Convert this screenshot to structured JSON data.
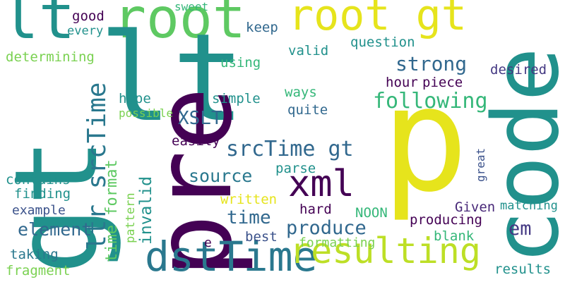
{
  "colors": {
    "background": "#ffffff",
    "teal": "#21918c",
    "dark_teal": "#2a788e",
    "blue": "#31688e",
    "slate": "#3b528b",
    "indigo": "#443983",
    "purple": "#440154",
    "dark_purple": "#482878",
    "green": "#5ec962",
    "sea_green": "#35b779",
    "lime": "#7ad151",
    "yellow_green": "#bddf26",
    "yellow": "#e6e41c"
  },
  "words": [
    {
      "text": "lt",
      "color": "teal"
    },
    {
      "text": "root",
      "color": "green"
    },
    {
      "text": "root gt",
      "color": "yellow"
    },
    {
      "text": "gt",
      "color": "teal"
    },
    {
      "text": "lt",
      "color": "teal"
    },
    {
      "text": "pre",
      "color": "purple"
    },
    {
      "text": "p",
      "color": "yellow"
    },
    {
      "text": "code",
      "color": "teal"
    },
    {
      "text": "ltr srcTime",
      "color": "dark_teal"
    },
    {
      "text": "dstTime",
      "color": "dark_teal"
    },
    {
      "text": "resulting",
      "color": "yellow_green"
    },
    {
      "text": "xml",
      "color": "purple"
    },
    {
      "text": "srcTime gt",
      "color": "blue"
    },
    {
      "text": "XSLT",
      "color": "blue"
    },
    {
      "text": "following",
      "color": "sea_green"
    },
    {
      "text": "strong",
      "color": "blue"
    },
    {
      "text": "time format",
      "color": "green"
    },
    {
      "text": "invalid",
      "color": "teal"
    },
    {
      "text": "source",
      "color": "dark_teal"
    },
    {
      "text": "element",
      "color": "blue"
    },
    {
      "text": "produce",
      "color": "blue"
    },
    {
      "text": "time",
      "color": "blue"
    },
    {
      "text": "em",
      "color": "indigo"
    },
    {
      "text": "good",
      "color": "purple"
    },
    {
      "text": "every",
      "color": "teal"
    },
    {
      "text": "sweet",
      "color": "sea_green"
    },
    {
      "text": "keep",
      "color": "blue"
    },
    {
      "text": "question",
      "color": "teal"
    },
    {
      "text": "determining",
      "color": "lime"
    },
    {
      "text": "valid",
      "color": "teal"
    },
    {
      "text": "using",
      "color": "sea_green"
    },
    {
      "text": "desired",
      "color": "indigo"
    },
    {
      "text": "hour",
      "color": "purple"
    },
    {
      "text": "piece",
      "color": "purple"
    },
    {
      "text": "hope",
      "color": "teal"
    },
    {
      "text": "ways",
      "color": "sea_green"
    },
    {
      "text": "simple",
      "color": "teal"
    },
    {
      "text": "possible",
      "color": "lime"
    },
    {
      "text": "quite",
      "color": "blue"
    },
    {
      "text": "easily",
      "color": "purple"
    },
    {
      "text": "pattern",
      "color": "lime"
    },
    {
      "text": "parse",
      "color": "teal"
    },
    {
      "text": "great",
      "color": "slate"
    },
    {
      "text": "contains",
      "color": "teal"
    },
    {
      "text": "finding",
      "color": "teal"
    },
    {
      "text": "written",
      "color": "yellow"
    },
    {
      "text": "example",
      "color": "slate"
    },
    {
      "text": "hard",
      "color": "purple"
    },
    {
      "text": "NOON",
      "color": "sea_green"
    },
    {
      "text": "Given",
      "color": "dark_purple"
    },
    {
      "text": "matching",
      "color": "teal"
    },
    {
      "text": "producing",
      "color": "purple"
    },
    {
      "text": "best",
      "color": "slate"
    },
    {
      "text": "formatting",
      "color": "lime"
    },
    {
      "text": "blank",
      "color": "sea_green"
    },
    {
      "text": "e",
      "color": "purple"
    },
    {
      "text": "taking",
      "color": "dark_teal"
    },
    {
      "text": "fragment",
      "color": "lime"
    },
    {
      "text": "results",
      "color": "teal"
    }
  ]
}
